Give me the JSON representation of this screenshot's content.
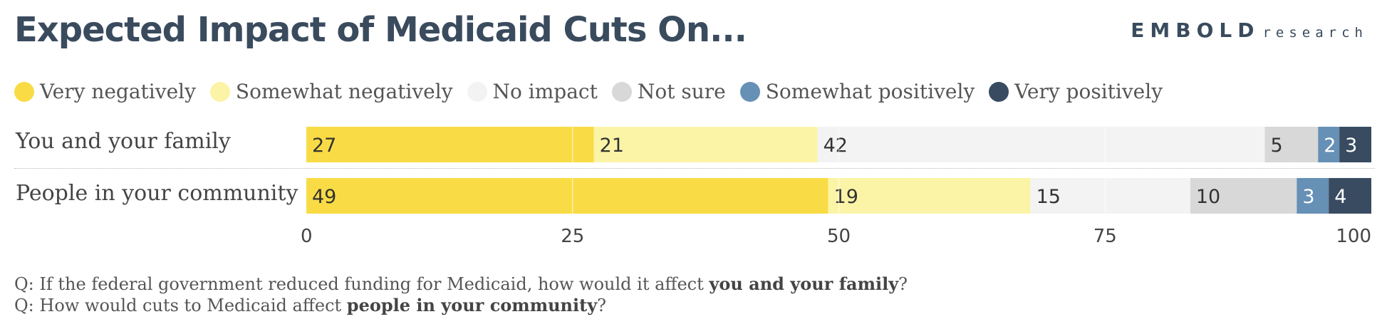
{
  "header": {
    "title": "Expected Impact of Medicaid Cuts On...",
    "logo_main": "EMBOLD",
    "logo_sub": "research"
  },
  "chart_data": {
    "type": "bar",
    "orientation": "horizontal",
    "stacked": true,
    "title": "Expected Impact of Medicaid Cuts On...",
    "categories": [
      "You and your family",
      "People in your community"
    ],
    "series": [
      {
        "name": "Very negatively",
        "color": "#f9dc45",
        "label_color": "#333333",
        "values": [
          27,
          49
        ]
      },
      {
        "name": "Somewhat negatively",
        "color": "#fbf4a7",
        "label_color": "#333333",
        "values": [
          21,
          19
        ]
      },
      {
        "name": "No impact",
        "color": "#f3f3f3",
        "label_color": "#333333",
        "values": [
          42,
          15
        ]
      },
      {
        "name": "Not sure",
        "color": "#d8d8d8",
        "label_color": "#333333",
        "values": [
          5,
          10
        ]
      },
      {
        "name": "Somewhat positively",
        "color": "#6690b5",
        "label_color": "#ffffff",
        "values": [
          2,
          3
        ]
      },
      {
        "name": "Very positively",
        "color": "#384b60",
        "label_color": "#ffffff",
        "values": [
          3,
          4
        ]
      }
    ],
    "xlim": [
      0,
      100
    ],
    "xticks": [
      0,
      25,
      50,
      75,
      100
    ],
    "grid": true,
    "legend": "top"
  },
  "questions": {
    "q1_prefix": "Q: If the federal government reduced funding for Medicaid, how would it affect ",
    "q1_bold": "you and your family",
    "q1_suffix": "?",
    "q2_prefix": "Q: How would cuts to Medicaid affect ",
    "q2_bold": "people in your community",
    "q2_suffix": "?"
  }
}
